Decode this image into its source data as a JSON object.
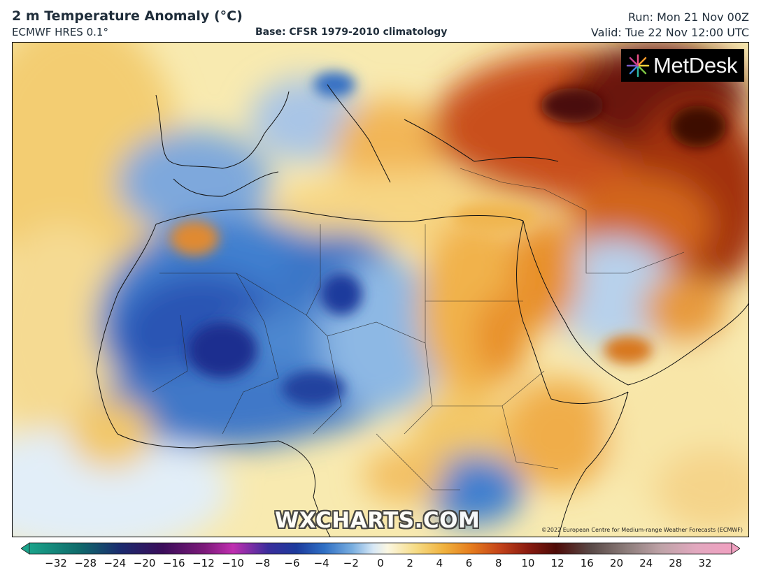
{
  "header": {
    "title": "2 m Temperature Anomaly (°C)",
    "model": "ECMWF HRES 0.1°",
    "base": "Base: CFSR 1979-2010 climatology",
    "run": "Run: Mon 21 Nov 00Z",
    "valid": "Valid: Tue 22 Nov 12:00 UTC"
  },
  "logo": {
    "text": "MetDesk",
    "icon": "starburst-logo-icon"
  },
  "watermark": "WXCHARTS.COM",
  "copyright": "©2022 European Centre for Medium-range Weather Forecasts (ECMWF)",
  "colorbar": {
    "labels": [
      "−32",
      "−28",
      "−24",
      "−20",
      "−16",
      "−12",
      "−10",
      "−8",
      "−6",
      "−4",
      "−2",
      "0",
      "2",
      "4",
      "6",
      "8",
      "10",
      "12",
      "16",
      "20",
      "24",
      "28",
      "32"
    ],
    "min_color": "#1aa38a",
    "max_color": "#f0a0c0"
  },
  "colors": {
    "strong_cold": "#1c2f8f",
    "cold": "#3f7fcf",
    "mild_cold": "#a7c8ea",
    "neutral": "#fbf7e2",
    "mild_warm": "#f6d68a",
    "warm": "#ef9a2c",
    "hot": "#b43810",
    "very_hot": "#5a1008"
  }
}
